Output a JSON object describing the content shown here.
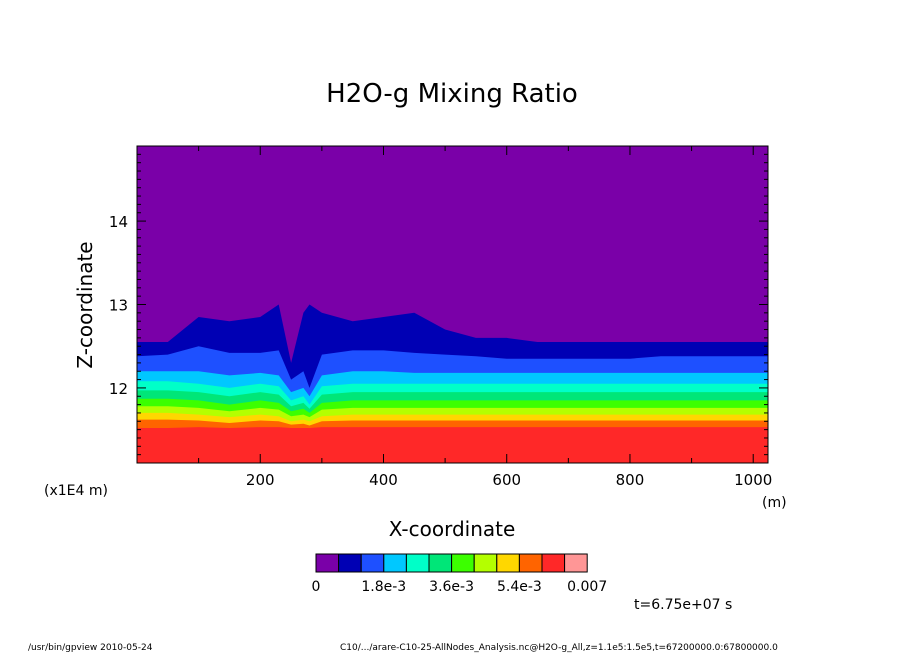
{
  "chart_data": {
    "type": "heatmap",
    "title": "H2O-g Mixing Ratio",
    "xlabel": "X-coordinate",
    "ylabel": "Z-coordinate",
    "x_unit": "(m)",
    "y_unit": "(x1E4 m)",
    "xlim": [
      0,
      1024
    ],
    "ylim": [
      11.1,
      14.9
    ],
    "xticks": [
      200,
      400,
      600,
      800,
      1000
    ],
    "yticks": [
      12,
      13,
      14
    ],
    "colorbar": {
      "colors": [
        "#7a00a8",
        "#0000b4",
        "#1e50ff",
        "#00c8ff",
        "#00ffc8",
        "#00e678",
        "#3cff00",
        "#b4ff00",
        "#ffd700",
        "#ff6400",
        "#ff2828",
        "#ff9696"
      ],
      "labels": [
        "0",
        "1.8e-3",
        "3.6e-3",
        "5.4e-3",
        "0.007"
      ],
      "levels": [
        0,
        0.0006,
        0.0012,
        0.0018,
        0.0024,
        0.003,
        0.0036,
        0.0042,
        0.0048,
        0.0054,
        0.006,
        0.0066,
        0.007
      ]
    },
    "boundaries": {
      "x": [
        0,
        50,
        100,
        150,
        200,
        230,
        250,
        270,
        280,
        300,
        350,
        400,
        450,
        500,
        550,
        600,
        650,
        700,
        750,
        800,
        850,
        900,
        950,
        1000,
        1024
      ],
      "z": [
        [
          12.55,
          12.55,
          12.85,
          12.8,
          12.85,
          13.0,
          12.3,
          12.9,
          13.0,
          12.9,
          12.8,
          12.85,
          12.9,
          12.7,
          12.6,
          12.6,
          12.55,
          12.55,
          12.55,
          12.55,
          12.55,
          12.55,
          12.55,
          12.55,
          12.55
        ],
        [
          12.38,
          12.4,
          12.5,
          12.42,
          12.42,
          12.45,
          12.1,
          12.2,
          12.0,
          12.4,
          12.45,
          12.45,
          12.42,
          12.4,
          12.38,
          12.35,
          12.35,
          12.35,
          12.35,
          12.35,
          12.38,
          12.38,
          12.38,
          12.38,
          12.38
        ],
        [
          12.2,
          12.2,
          12.2,
          12.15,
          12.18,
          12.15,
          11.95,
          12.0,
          11.9,
          12.15,
          12.2,
          12.2,
          12.18,
          12.18,
          12.18,
          12.18,
          12.18,
          12.18,
          12.18,
          12.18,
          12.18,
          12.18,
          12.18,
          12.18,
          12.18
        ],
        [
          12.08,
          12.08,
          12.05,
          12.0,
          12.05,
          12.02,
          11.85,
          11.9,
          11.8,
          12.02,
          12.05,
          12.05,
          12.05,
          12.05,
          12.05,
          12.05,
          12.05,
          12.05,
          12.05,
          12.05,
          12.05,
          12.05,
          12.05,
          12.05,
          12.05
        ],
        [
          11.97,
          11.97,
          11.95,
          11.9,
          11.95,
          11.92,
          11.78,
          11.82,
          11.75,
          11.92,
          11.95,
          11.95,
          11.95,
          11.95,
          11.95,
          11.95,
          11.95,
          11.95,
          11.95,
          11.95,
          11.95,
          11.95,
          11.95,
          11.95,
          11.95
        ],
        [
          11.87,
          11.87,
          11.85,
          11.8,
          11.85,
          11.82,
          11.72,
          11.75,
          11.7,
          11.82,
          11.85,
          11.85,
          11.85,
          11.85,
          11.85,
          11.85,
          11.85,
          11.85,
          11.85,
          11.85,
          11.85,
          11.85,
          11.85,
          11.85,
          11.85
        ],
        [
          11.78,
          11.78,
          11.76,
          11.72,
          11.76,
          11.74,
          11.66,
          11.68,
          11.65,
          11.74,
          11.76,
          11.76,
          11.76,
          11.76,
          11.76,
          11.76,
          11.76,
          11.76,
          11.76,
          11.76,
          11.76,
          11.76,
          11.76,
          11.76,
          11.76
        ],
        [
          11.7,
          11.7,
          11.68,
          11.65,
          11.68,
          11.66,
          11.6,
          11.62,
          11.6,
          11.66,
          11.68,
          11.68,
          11.68,
          11.68,
          11.68,
          11.68,
          11.68,
          11.68,
          11.68,
          11.68,
          11.68,
          11.68,
          11.68,
          11.68,
          11.68
        ],
        [
          11.62,
          11.62,
          11.61,
          11.58,
          11.61,
          11.6,
          11.56,
          11.57,
          11.55,
          11.6,
          11.61,
          11.61,
          11.61,
          11.61,
          11.61,
          11.61,
          11.61,
          11.61,
          11.61,
          11.61,
          11.61,
          11.61,
          11.61,
          11.61,
          11.61
        ],
        [
          11.52,
          11.52,
          11.53,
          11.52,
          11.53,
          11.53,
          11.52,
          11.52,
          11.52,
          11.53,
          11.53,
          11.53,
          11.53,
          11.53,
          11.53,
          11.53,
          11.53,
          11.53,
          11.53,
          11.53,
          11.53,
          11.53,
          11.53,
          11.53,
          11.53
        ]
      ]
    }
  },
  "time_label": "t=6.75e+07 s",
  "footer_left": "/usr/bin/gpview  2010-05-24",
  "footer_right": "C10/.../arare-C10-25-AllNodes_Analysis.nc@H2O-g_All,z=1.1e5:1.5e5,t=67200000.0:67800000.0"
}
